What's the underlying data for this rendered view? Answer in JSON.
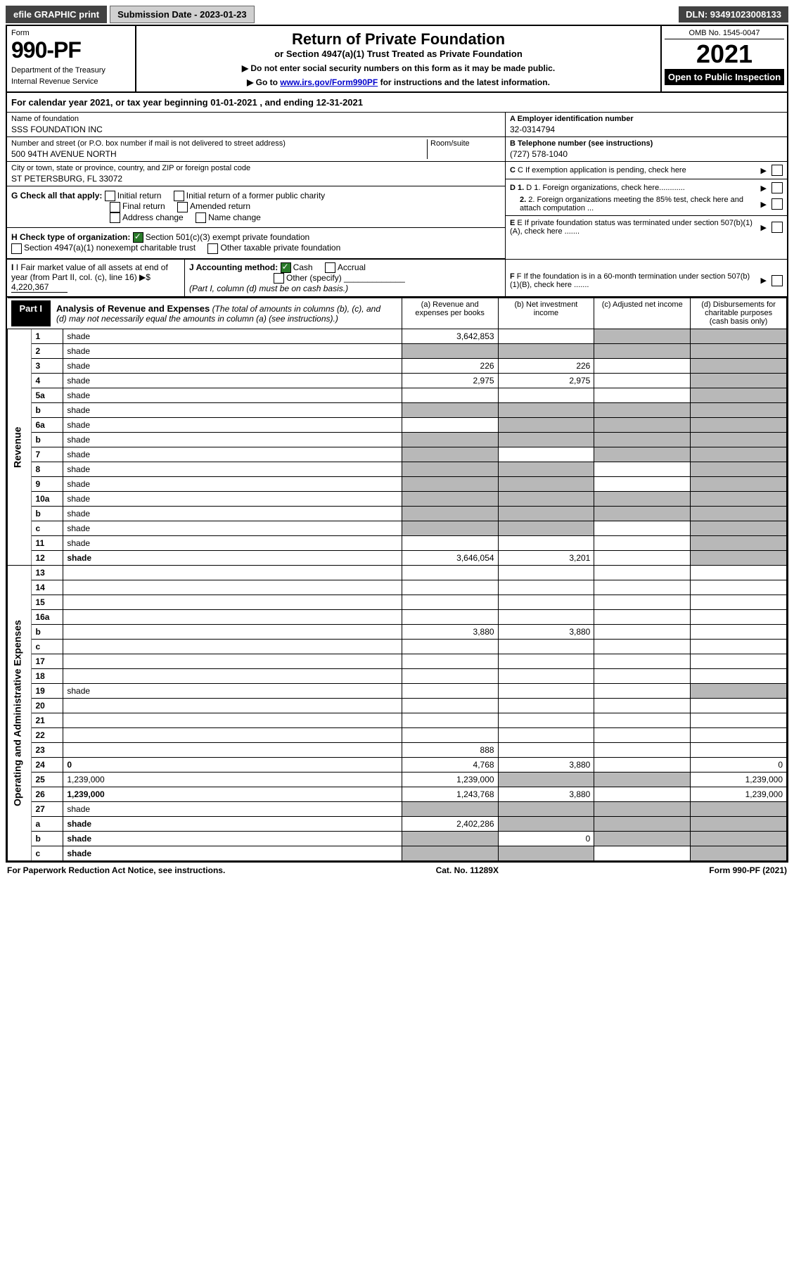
{
  "topbar": {
    "efile": "efile GRAPHIC print",
    "submission": "Submission Date - 2023-01-23",
    "dln": "DLN: 93491023008133"
  },
  "header": {
    "form_label": "Form",
    "form_number": "990-PF",
    "dept1": "Department of the Treasury",
    "dept2": "Internal Revenue Service",
    "title": "Return of Private Foundation",
    "subtitle": "or Section 4947(a)(1) Trust Treated as Private Foundation",
    "instr1": "▶ Do not enter social security numbers on this form as it may be made public.",
    "instr2_pre": "▶ Go to ",
    "instr2_link": "www.irs.gov/Form990PF",
    "instr2_post": " for instructions and the latest information.",
    "omb": "OMB No. 1545-0047",
    "year": "2021",
    "open": "Open to Public Inspection"
  },
  "calyear": "For calendar year 2021, or tax year beginning 01-01-2021           , and ending 12-31-2021",
  "info": {
    "name_label": "Name of foundation",
    "name": "SSS FOUNDATION INC",
    "addr_label": "Number and street (or P.O. box number if mail is not delivered to street address)",
    "room_label": "Room/suite",
    "addr": "500 94TH AVENUE NORTH",
    "city_label": "City or town, state or province, country, and ZIP or foreign postal code",
    "city": "ST PETERSBURG, FL  33072",
    "a_label": "A Employer identification number",
    "a_val": "32-0314794",
    "b_label": "B Telephone number (see instructions)",
    "b_val": "(727) 578-1040",
    "c_label": "C If exemption application is pending, check here",
    "d1_label": "D 1. Foreign organizations, check here............",
    "d2_label": "2. Foreign organizations meeting the 85% test, check here and attach computation ...",
    "e_label": "E If private foundation status was terminated under section 507(b)(1)(A), check here .......",
    "f_label": "F If the foundation is in a 60-month termination under section 507(b)(1)(B), check here .......",
    "g_label": "G Check all that apply:",
    "g1": "Initial return",
    "g2": "Initial return of a former public charity",
    "g3": "Final return",
    "g4": "Amended return",
    "g5": "Address change",
    "g6": "Name change",
    "h_label": "H Check type of organization:",
    "h1": "Section 501(c)(3) exempt private foundation",
    "h2": "Section 4947(a)(1) nonexempt charitable trust",
    "h3": "Other taxable private foundation",
    "i_label": "I Fair market value of all assets at end of year (from Part II, col. (c), line 16) ▶$",
    "i_val": "4,220,367",
    "j_label": "J Accounting method:",
    "j1": "Cash",
    "j2": "Accrual",
    "j3": "Other (specify)",
    "j_note": "(Part I, column (d) must be on cash basis.)"
  },
  "part1": {
    "badge": "Part I",
    "title": "Analysis of Revenue and Expenses",
    "title_note": "(The total of amounts in columns (b), (c), and (d) may not necessarily equal the amounts in column (a) (see instructions).)",
    "col_a": "(a) Revenue and expenses per books",
    "col_b": "(b) Net investment income",
    "col_c": "(c) Adjusted net income",
    "col_d": "(d) Disbursements for charitable purposes (cash basis only)",
    "side_rev": "Revenue",
    "side_exp": "Operating and Administrative Expenses"
  },
  "rows": [
    {
      "n": "1",
      "d": "shade",
      "a": "3,642,853",
      "b": "",
      "c": "shade"
    },
    {
      "n": "2",
      "d": "shade",
      "a": "shade",
      "b": "shade",
      "c": "shade"
    },
    {
      "n": "3",
      "d": "shade",
      "a": "226",
      "b": "226",
      "c": ""
    },
    {
      "n": "4",
      "d": "shade",
      "a": "2,975",
      "b": "2,975",
      "c": ""
    },
    {
      "n": "5a",
      "d": "shade",
      "a": "",
      "b": "",
      "c": ""
    },
    {
      "n": "b",
      "d": "shade",
      "a": "shade",
      "b": "shade",
      "c": "shade"
    },
    {
      "n": "6a",
      "d": "shade",
      "a": "",
      "b": "shade",
      "c": "shade"
    },
    {
      "n": "b",
      "d": "shade",
      "a": "shade",
      "b": "shade",
      "c": "shade"
    },
    {
      "n": "7",
      "d": "shade",
      "a": "shade",
      "b": "",
      "c": "shade"
    },
    {
      "n": "8",
      "d": "shade",
      "a": "shade",
      "b": "shade",
      "c": ""
    },
    {
      "n": "9",
      "d": "shade",
      "a": "shade",
      "b": "shade",
      "c": ""
    },
    {
      "n": "10a",
      "d": "shade",
      "a": "shade",
      "b": "shade",
      "c": "shade"
    },
    {
      "n": "b",
      "d": "shade",
      "a": "shade",
      "b": "shade",
      "c": "shade"
    },
    {
      "n": "c",
      "d": "shade",
      "a": "shade",
      "b": "shade",
      "c": ""
    },
    {
      "n": "11",
      "d": "shade",
      "a": "",
      "b": "",
      "c": ""
    },
    {
      "n": "12",
      "d": "shade",
      "a": "3,646,054",
      "b": "3,201",
      "c": "",
      "bold": true
    },
    {
      "n": "13",
      "d": "",
      "a": "",
      "b": "",
      "c": ""
    },
    {
      "n": "14",
      "d": "",
      "a": "",
      "b": "",
      "c": ""
    },
    {
      "n": "15",
      "d": "",
      "a": "",
      "b": "",
      "c": ""
    },
    {
      "n": "16a",
      "d": "",
      "a": "",
      "b": "",
      "c": ""
    },
    {
      "n": "b",
      "d": "",
      "a": "3,880",
      "b": "3,880",
      "c": ""
    },
    {
      "n": "c",
      "d": "",
      "a": "",
      "b": "",
      "c": ""
    },
    {
      "n": "17",
      "d": "",
      "a": "",
      "b": "",
      "c": ""
    },
    {
      "n": "18",
      "d": "",
      "a": "",
      "b": "",
      "c": ""
    },
    {
      "n": "19",
      "d": "shade",
      "a": "",
      "b": "",
      "c": ""
    },
    {
      "n": "20",
      "d": "",
      "a": "",
      "b": "",
      "c": ""
    },
    {
      "n": "21",
      "d": "",
      "a": "",
      "b": "",
      "c": ""
    },
    {
      "n": "22",
      "d": "",
      "a": "",
      "b": "",
      "c": ""
    },
    {
      "n": "23",
      "d": "",
      "a": "888",
      "b": "",
      "c": ""
    },
    {
      "n": "24",
      "d": "0",
      "a": "4,768",
      "b": "3,880",
      "c": "",
      "bold": true
    },
    {
      "n": "25",
      "d": "1,239,000",
      "a": "1,239,000",
      "b": "shade",
      "c": "shade"
    },
    {
      "n": "26",
      "d": "1,239,000",
      "a": "1,243,768",
      "b": "3,880",
      "c": "",
      "bold": true
    },
    {
      "n": "27",
      "d": "shade",
      "a": "shade",
      "b": "shade",
      "c": "shade"
    },
    {
      "n": "a",
      "d": "shade",
      "a": "2,402,286",
      "b": "shade",
      "c": "shade",
      "bold": true
    },
    {
      "n": "b",
      "d": "shade",
      "a": "shade",
      "b": "0",
      "c": "shade",
      "bold": true
    },
    {
      "n": "c",
      "d": "shade",
      "a": "shade",
      "b": "shade",
      "c": "",
      "bold": true
    }
  ],
  "footer": {
    "left": "For Paperwork Reduction Act Notice, see instructions.",
    "mid": "Cat. No. 11289X",
    "right": "Form 990-PF (2021)"
  }
}
